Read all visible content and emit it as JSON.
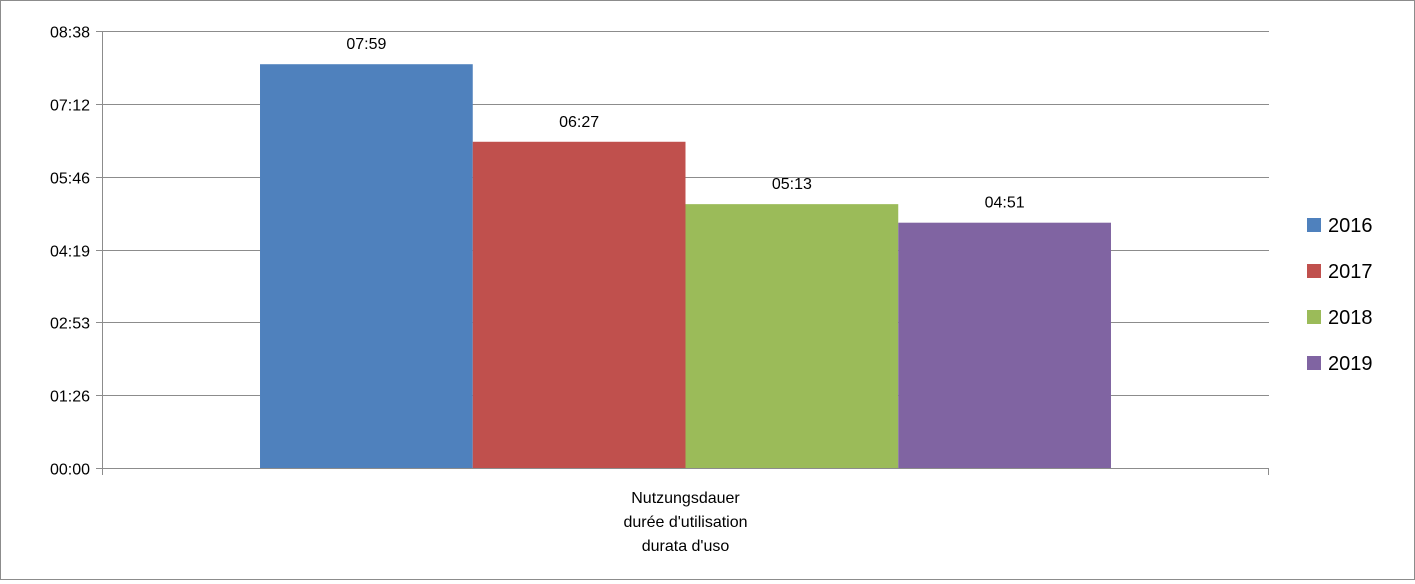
{
  "chart_data": {
    "type": "bar",
    "title": "",
    "xlabel": "",
    "ylabel": "",
    "categories": [
      "Nutzungsdauer\ndurée d'utilisation\ndurata d'uso"
    ],
    "category_lines": [
      "Nutzungsdauer",
      "durée d'utilisation",
      "durata d'uso"
    ],
    "series": [
      {
        "name": "2016",
        "values": [
          479
        ],
        "label": "07:59",
        "color": "#4F81BD"
      },
      {
        "name": "2017",
        "values": [
          387
        ],
        "label": "06:27",
        "color": "#C0504D"
      },
      {
        "name": "2018",
        "values": [
          313
        ],
        "label": "05:13",
        "color": "#9BBB59"
      },
      {
        "name": "2019",
        "values": [
          291
        ],
        "label": "04:51",
        "color": "#8064A2"
      }
    ],
    "value_unit": "minutes",
    "ylim": [
      0,
      518.4
    ],
    "yticks": [
      0,
      86.4,
      172.8,
      259.2,
      345.6,
      432,
      518.4
    ],
    "ytick_labels": [
      "00:00",
      "01:26",
      "02:53",
      "04:19",
      "05:46",
      "07:12",
      "08:38"
    ],
    "grid": true,
    "legend_position": "right",
    "gridline_color": "#8c8c8c"
  }
}
